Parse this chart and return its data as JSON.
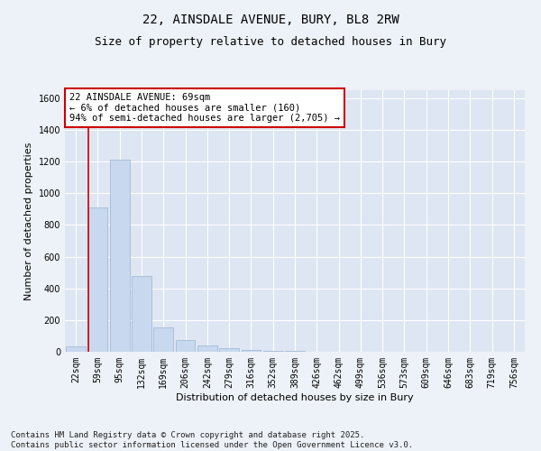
{
  "title_line1": "22, AINSDALE AVENUE, BURY, BL8 2RW",
  "title_line2": "Size of property relative to detached houses in Bury",
  "xlabel": "Distribution of detached houses by size in Bury",
  "ylabel": "Number of detached properties",
  "bar_color": "#c8d8ee",
  "bar_edge_color": "#9ab4d4",
  "background_color": "#dde6f2",
  "fig_background_color": "#edf1f8",
  "grid_color": "#ffffff",
  "annotation_box_color": "#cc0000",
  "vline_color": "#cc0000",
  "bins": [
    "22sqm",
    "59sqm",
    "95sqm",
    "132sqm",
    "169sqm",
    "206sqm",
    "242sqm",
    "279sqm",
    "316sqm",
    "352sqm",
    "389sqm",
    "426sqm",
    "462sqm",
    "499sqm",
    "536sqm",
    "573sqm",
    "609sqm",
    "646sqm",
    "683sqm",
    "719sqm",
    "756sqm"
  ],
  "values": [
    35,
    910,
    1210,
    480,
    155,
    75,
    40,
    25,
    10,
    5,
    5,
    0,
    0,
    0,
    0,
    0,
    0,
    0,
    0,
    0,
    0
  ],
  "ylim": [
    0,
    1650
  ],
  "yticks": [
    0,
    200,
    400,
    600,
    800,
    1000,
    1200,
    1400,
    1600
  ],
  "property_bin_index": 0,
  "vline_position": 0.57,
  "annotation_text": "22 AINSDALE AVENUE: 69sqm\n← 6% of detached houses are smaller (160)\n94% of semi-detached houses are larger (2,705) →",
  "footnote_line1": "Contains HM Land Registry data © Crown copyright and database right 2025.",
  "footnote_line2": "Contains public sector information licensed under the Open Government Licence v3.0.",
  "title_fontsize": 10,
  "subtitle_fontsize": 9,
  "axis_label_fontsize": 8,
  "tick_fontsize": 7,
  "annotation_fontsize": 7.5,
  "footnote_fontsize": 6.5
}
